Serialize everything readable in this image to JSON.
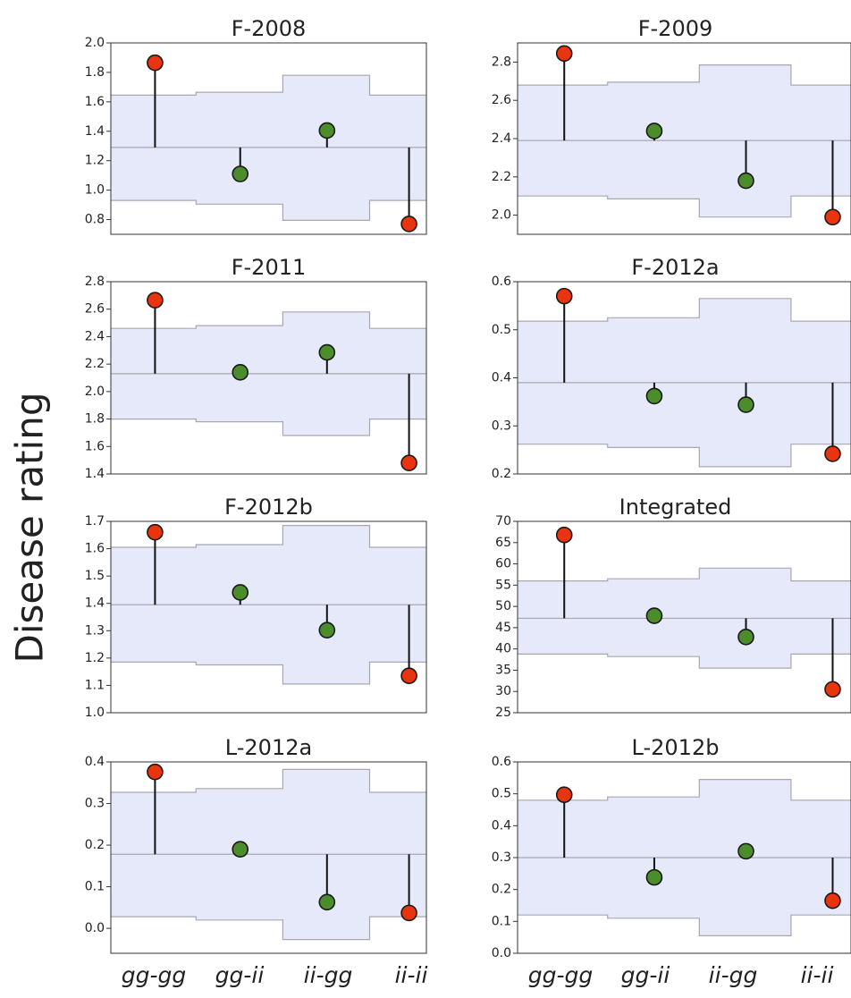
{
  "figure": {
    "y_label": "Disease rating",
    "x_categories": [
      "gg-gg",
      "gg-ii",
      "ii-gg",
      "ii-ii"
    ]
  },
  "colors": {
    "band_fill": "#e6e9f9",
    "band_edge": "#a7a7b3",
    "high_marker": "#e8350f",
    "mid_marker": "#4b8d2a",
    "stem": "#111111"
  },
  "chart_data": [
    {
      "type": "scatter",
      "title": "F-2008",
      "categories": [
        "gg-gg",
        "gg-ii",
        "ii-gg",
        "ii-ii"
      ],
      "ylim": [
        0.7,
        2.0
      ],
      "yticks": [
        0.8,
        1.0,
        1.2,
        1.4,
        1.6,
        1.8,
        2.0
      ],
      "tick_decimals": 1,
      "mean": 1.29,
      "upper": [
        1.645,
        1.665,
        1.78,
        1.645
      ],
      "lower": [
        0.93,
        0.905,
        0.795,
        0.93
      ],
      "values": [
        1.865,
        1.11,
        1.405,
        0.77
      ],
      "colors": [
        "red",
        "green",
        "green",
        "red"
      ]
    },
    {
      "type": "scatter",
      "title": "F-2009",
      "categories": [
        "gg-gg",
        "gg-ii",
        "ii-gg",
        "ii-ii"
      ],
      "ylim": [
        1.9,
        2.9
      ],
      "yticks": [
        2.0,
        2.2,
        2.4,
        2.6,
        2.8
      ],
      "tick_decimals": 1,
      "mean": 2.39,
      "upper": [
        2.68,
        2.695,
        2.785,
        2.68
      ],
      "lower": [
        2.1,
        2.085,
        1.99,
        2.1
      ],
      "values": [
        2.845,
        2.44,
        2.18,
        1.99
      ],
      "colors": [
        "red",
        "green",
        "green",
        "red"
      ]
    },
    {
      "type": "scatter",
      "title": "F-2011",
      "categories": [
        "gg-gg",
        "gg-ii",
        "ii-gg",
        "ii-ii"
      ],
      "ylim": [
        1.4,
        2.8
      ],
      "yticks": [
        1.4,
        1.6,
        1.8,
        2.0,
        2.2,
        2.4,
        2.6,
        2.8
      ],
      "tick_decimals": 1,
      "mean": 2.13,
      "upper": [
        2.46,
        2.48,
        2.58,
        2.46
      ],
      "lower": [
        1.8,
        1.78,
        1.68,
        1.8
      ],
      "values": [
        2.665,
        2.14,
        2.285,
        1.48
      ],
      "colors": [
        "red",
        "green",
        "green",
        "red"
      ]
    },
    {
      "type": "scatter",
      "title": "F-2012a",
      "categories": [
        "gg-gg",
        "gg-ii",
        "ii-gg",
        "ii-ii"
      ],
      "ylim": [
        0.2,
        0.6
      ],
      "yticks": [
        0.2,
        0.3,
        0.4,
        0.5,
        0.6
      ],
      "tick_decimals": 1,
      "mean": 0.39,
      "upper": [
        0.518,
        0.525,
        0.565,
        0.518
      ],
      "lower": [
        0.262,
        0.255,
        0.215,
        0.262
      ],
      "values": [
        0.57,
        0.362,
        0.344,
        0.242
      ],
      "colors": [
        "red",
        "green",
        "green",
        "red"
      ]
    },
    {
      "type": "scatter",
      "title": "F-2012b",
      "categories": [
        "gg-gg",
        "gg-ii",
        "ii-gg",
        "ii-ii"
      ],
      "ylim": [
        1.0,
        1.7
      ],
      "yticks": [
        1.0,
        1.1,
        1.2,
        1.3,
        1.4,
        1.5,
        1.6,
        1.7
      ],
      "tick_decimals": 1,
      "mean": 1.395,
      "upper": [
        1.605,
        1.615,
        1.685,
        1.605
      ],
      "lower": [
        1.185,
        1.175,
        1.105,
        1.185
      ],
      "values": [
        1.66,
        1.44,
        1.302,
        1.135
      ],
      "colors": [
        "red",
        "green",
        "green",
        "red"
      ]
    },
    {
      "type": "scatter",
      "title": "Integrated",
      "categories": [
        "gg-gg",
        "gg-ii",
        "ii-gg",
        "ii-ii"
      ],
      "ylim": [
        25,
        70
      ],
      "yticks": [
        25,
        30,
        35,
        40,
        45,
        50,
        55,
        60,
        65,
        70
      ],
      "tick_decimals": 0,
      "mean": 47.2,
      "upper": [
        56,
        56.5,
        59,
        56
      ],
      "lower": [
        38.8,
        38.2,
        35.5,
        38.8
      ],
      "values": [
        66.8,
        47.8,
        42.8,
        30.5
      ],
      "colors": [
        "red",
        "green",
        "green",
        "red"
      ]
    },
    {
      "type": "scatter",
      "title": "L-2012a",
      "categories": [
        "gg-gg",
        "gg-ii",
        "ii-gg",
        "ii-ii"
      ],
      "ylim": [
        -0.06,
        0.4
      ],
      "yticks": [
        0.0,
        0.1,
        0.2,
        0.3,
        0.4
      ],
      "tick_decimals": 1,
      "mean": 0.178,
      "upper": [
        0.327,
        0.336,
        0.382,
        0.327
      ],
      "lower": [
        0.028,
        0.02,
        -0.027,
        0.028
      ],
      "values": [
        0.376,
        0.19,
        0.063,
        0.037
      ],
      "colors": [
        "red",
        "green",
        "green",
        "red"
      ]
    },
    {
      "type": "scatter",
      "title": "L-2012b",
      "categories": [
        "gg-gg",
        "gg-ii",
        "ii-gg",
        "ii-ii"
      ],
      "ylim": [
        0.0,
        0.6
      ],
      "yticks": [
        0.0,
        0.1,
        0.2,
        0.3,
        0.4,
        0.5,
        0.6
      ],
      "tick_decimals": 1,
      "mean": 0.3,
      "upper": [
        0.48,
        0.49,
        0.545,
        0.48
      ],
      "lower": [
        0.12,
        0.11,
        0.055,
        0.12
      ],
      "values": [
        0.497,
        0.238,
        0.32,
        0.165
      ],
      "colors": [
        "red",
        "green",
        "green",
        "red"
      ]
    }
  ]
}
